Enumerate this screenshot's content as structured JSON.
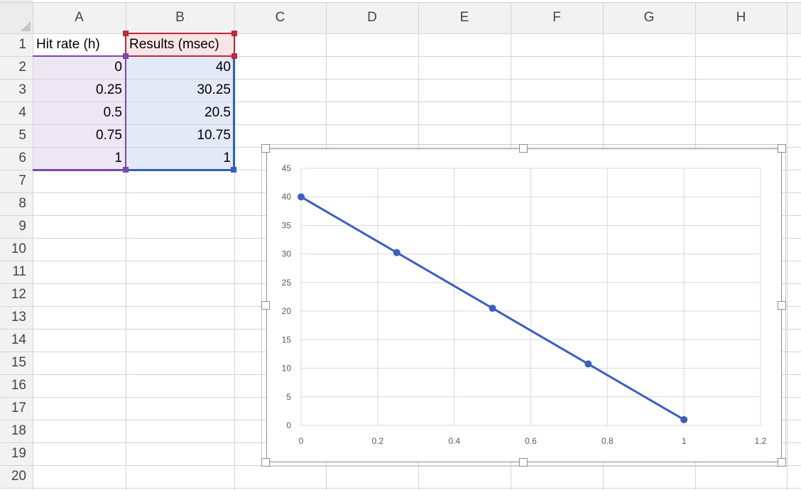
{
  "spreadsheet": {
    "columns": [
      "A",
      "B",
      "C",
      "D",
      "E",
      "F",
      "G",
      "H"
    ],
    "rows": [
      "1",
      "2",
      "3",
      "4",
      "5",
      "6",
      "7",
      "8",
      "9",
      "10",
      "11",
      "12",
      "13",
      "14",
      "15",
      "16",
      "17",
      "18",
      "19",
      "20"
    ],
    "cells": {
      "A1": "Hit rate (h)",
      "B1": "Results (msec)",
      "A2": "0",
      "B2": "40",
      "A3": "0.25",
      "B3": "30.25",
      "A4": "0.5",
      "B4": "20.5",
      "A5": "0.75",
      "B5": "10.75",
      "A6": "1",
      "B6": "1"
    }
  },
  "colors": {
    "x_range_highlight": "#7b4aa8",
    "header_highlight": "#c0283c",
    "y_range_highlight": "#2f5fc0",
    "series_line": "#3a5fc0"
  },
  "chart_data": {
    "type": "scatter",
    "title": "",
    "xlabel": "",
    "ylabel": "",
    "series": [
      {
        "x": [
          0,
          0.25,
          0.5,
          0.75,
          1
        ],
        "y": [
          40,
          30.25,
          20.5,
          10.75,
          1
        ]
      }
    ],
    "xlim": [
      0,
      1.2
    ],
    "ylim": [
      0,
      45
    ],
    "x_ticks": [
      "0",
      "0.2",
      "0.4",
      "0.6",
      "0.8",
      "1",
      "1.2"
    ],
    "y_ticks": [
      "0",
      "5",
      "10",
      "15",
      "20",
      "25",
      "30",
      "35",
      "40",
      "45"
    ],
    "grid": true,
    "legend": "none",
    "markers": true,
    "line_connected": true
  }
}
